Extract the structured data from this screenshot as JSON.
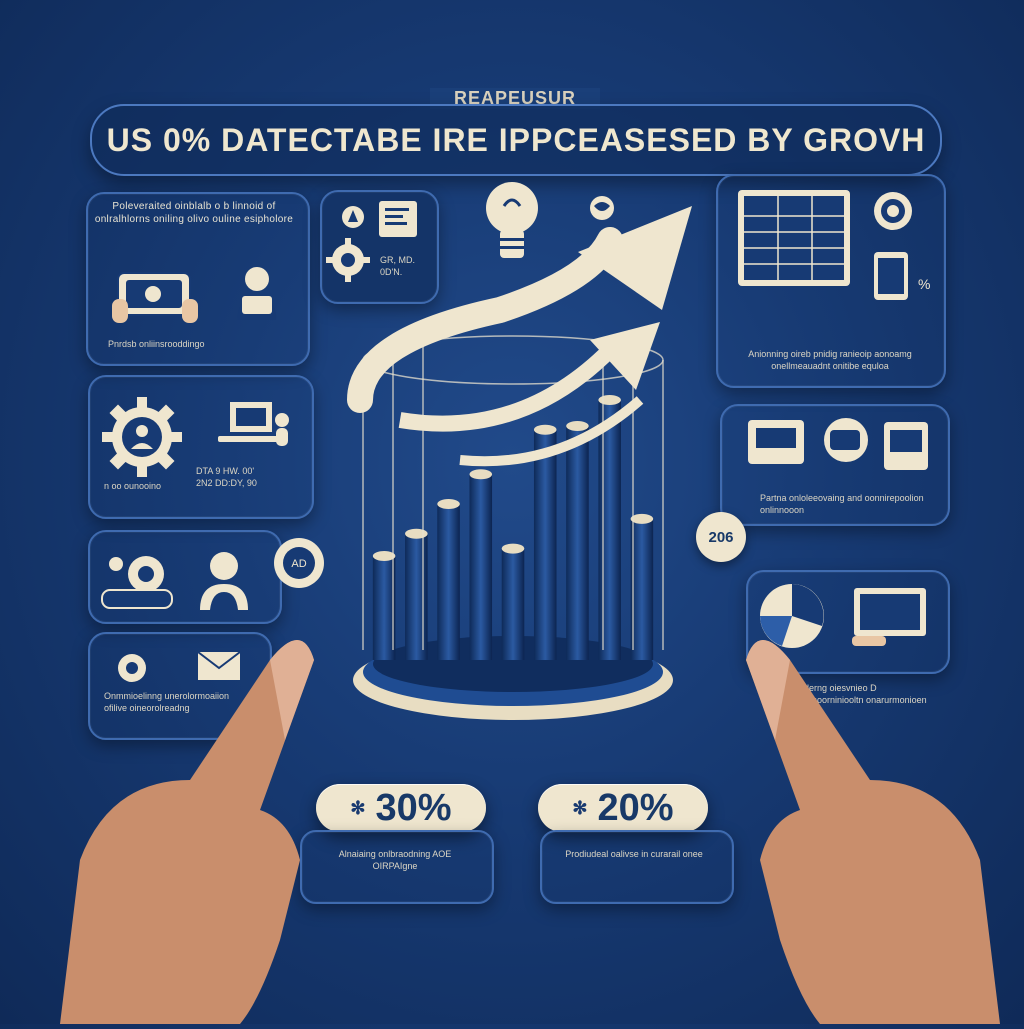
{
  "header": {
    "eyebrow": "REAPEUSUR",
    "title": "US 0% DATECTABE IRE IPPCEASESED BY GROVH"
  },
  "left_panels": {
    "p1_text": "Poleveraited oinblalb o b linnoid of onlralhlorns oniling olivo ouline esipholore",
    "p2_text": "Pnrdsb onliinsrooddingo",
    "p3_left": "n oo ounooino",
    "p3_right": "DTA 9 HW. 00' 2N2 DD:DY, 90",
    "p4_text": "Onmmioelinng unerolormoaiion ofilive oineorolreadng",
    "icon_box_caption": "GR, MD. 0D'N."
  },
  "right_panels": {
    "r1_text": "Anionning oireb pnidig ranieoip aonoamg onellmeauadnt onitibe equloa",
    "r1_badge": "%",
    "r2_text": "Partna onloleeovaing and oonnirepoolion onlinnooon",
    "r3_text": "Pnondelerng oiesvnieo D oondolwmoorniniooltn onarurmonioen"
  },
  "chart_data": {
    "type": "bar",
    "categories": [
      "",
      "",
      "",
      "",
      "",
      "",
      "",
      "",
      ""
    ],
    "values": [
      28,
      34,
      42,
      50,
      30,
      62,
      63,
      70,
      38
    ],
    "title": "",
    "xlabel": "",
    "ylabel": ""
  },
  "badges": {
    "side_badge": "206",
    "bottom_left_value": "30%",
    "bottom_left_caption": "Alnaiaing onlbraodning AOE OIRPAIgne",
    "bottom_right_value": "20%",
    "bottom_right_caption": "Prodiudeal oalivse in curarail onee"
  },
  "colors": {
    "background": "#173a73",
    "panel_border": "#3f6bb0",
    "cream": "#efe6cf"
  }
}
